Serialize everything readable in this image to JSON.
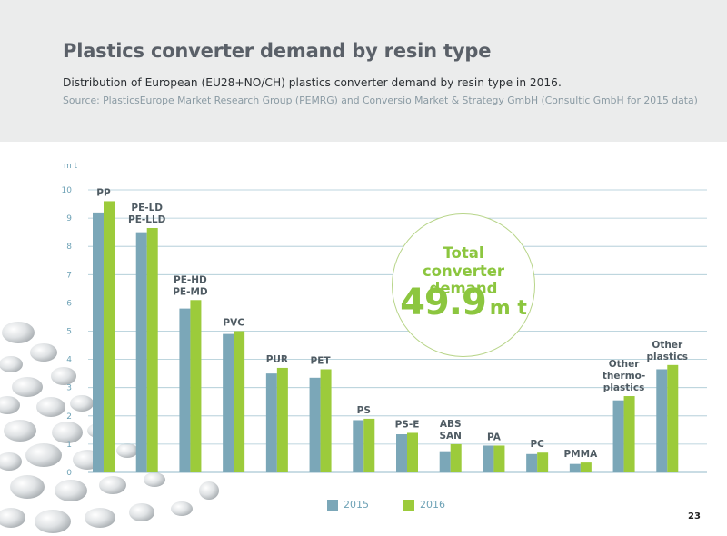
{
  "header": {
    "title": "Plastics converter demand by resin type",
    "subtitle": "Distribution of European (EU28+NO/CH) plastics converter demand by resin type in 2016.",
    "source": "Source: PlasticsEurope Market Research Group (PEMRG) and Conversio Market & Strategy GmbH (Consultic GmbH for 2015 data)"
  },
  "total": {
    "line1": "Total",
    "line2": "converter demand",
    "value": "49.9",
    "unit": "m t"
  },
  "page_number": "23",
  "colors": {
    "series_2015": "#7ba7b8",
    "series_2016": "#9ccb3b",
    "accent_green": "#8cc63f",
    "axis_text": "#6ea2b6",
    "grid": "#a9c8d4"
  },
  "chart_data": {
    "type": "bar",
    "ylabel": "m t",
    "ylim": [
      0,
      10
    ],
    "yticks": [
      0,
      1,
      2,
      3,
      4,
      5,
      6,
      7,
      8,
      9,
      10
    ],
    "grid": true,
    "legend_position": "bottom",
    "categories": [
      [
        "PP"
      ],
      [
        "PE-LD",
        "PE-LLD"
      ],
      [
        "PE-HD",
        "PE-MD"
      ],
      [
        "PVC"
      ],
      [
        "PUR"
      ],
      [
        "PET"
      ],
      [
        "PS"
      ],
      [
        "PS-E"
      ],
      [
        "ABS",
        "SAN"
      ],
      [
        "PA"
      ],
      [
        "PC"
      ],
      [
        "PMMA"
      ],
      [
        "Other",
        "thermo-",
        "plastics"
      ],
      [
        "Other",
        "plastics"
      ]
    ],
    "series": [
      {
        "name": "2015",
        "values": [
          9.2,
          8.5,
          5.8,
          4.9,
          3.5,
          3.35,
          1.85,
          1.35,
          0.75,
          0.95,
          0.65,
          0.3,
          2.55,
          3.65
        ]
      },
      {
        "name": "2016",
        "values": [
          9.6,
          8.65,
          6.1,
          5.0,
          3.7,
          3.65,
          1.9,
          1.4,
          1.0,
          0.95,
          0.7,
          0.35,
          2.7,
          3.8
        ]
      }
    ]
  }
}
